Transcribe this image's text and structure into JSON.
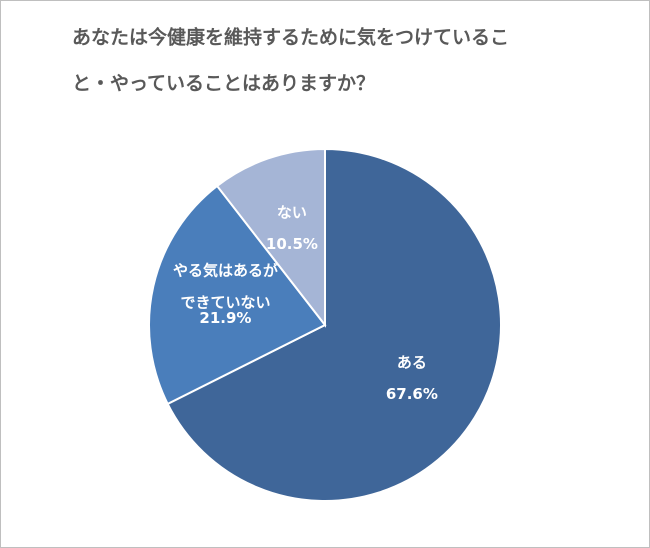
{
  "chart_data": {
    "type": "pie",
    "title": [
      "あなたは今健康を維持するために気をつけているこ",
      "と・やっていることはありますか？"
    ],
    "categories": [
      "ある",
      "やる気はあるができていない",
      "ない"
    ],
    "values": [
      67.6,
      21.9,
      10.5
    ],
    "value_labels": [
      "67.6%",
      "21.9%",
      "10.5%"
    ],
    "colors": [
      "#3f6699",
      "#4a7ebb",
      "#a5b5d6"
    ]
  }
}
